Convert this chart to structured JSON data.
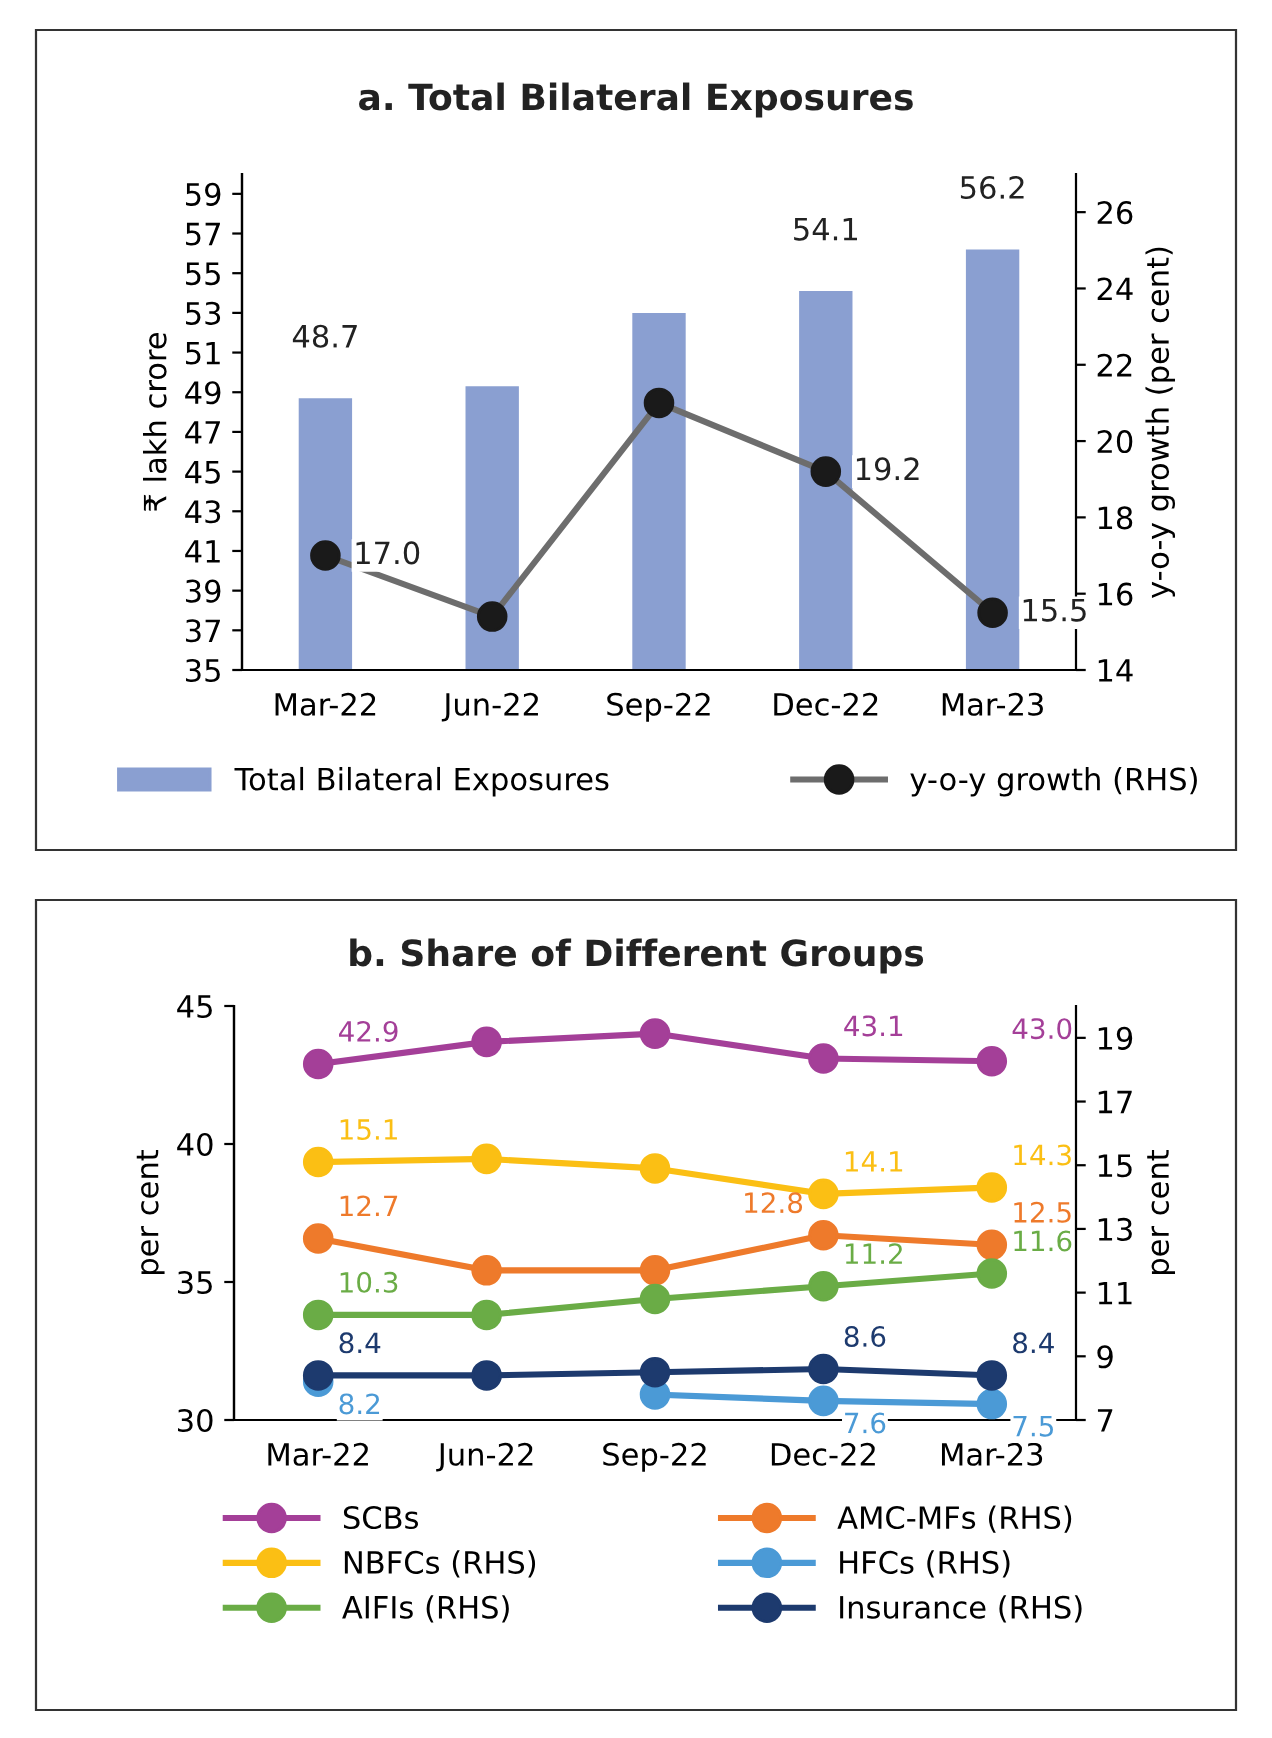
{
  "chart_data": [
    {
      "type": "bar",
      "title": "a. Total Bilateral Exposures",
      "ylabel": "₹ lakh crore",
      "y2label": "y-o-y growth (per cent)",
      "categories": [
        "Mar-22",
        "Jun-22",
        "Sep-22",
        "Dec-22",
        "Mar-23"
      ],
      "series": [
        {
          "name": "Total Bilateral Exposures",
          "type": "bar",
          "color": "#8a9fd1",
          "values": [
            48.7,
            49.3,
            53.0,
            54.1,
            56.2
          ],
          "value_labels": [
            "48.7",
            null,
            null,
            "54.1",
            "56.2"
          ]
        },
        {
          "name": "y-o-y growth (RHS)",
          "type": "line",
          "axis": "y2",
          "color": "#6d6d6d",
          "values": [
            17.0,
            15.4,
            21.0,
            19.2,
            15.5
          ],
          "value_labels": [
            "17.0",
            null,
            null,
            "19.2",
            "15.5"
          ]
        }
      ],
      "ylim": [
        35,
        60
      ],
      "yticks": [
        35,
        37,
        39,
        41,
        43,
        45,
        47,
        49,
        51,
        53,
        55,
        57,
        59
      ],
      "y2lim": [
        14,
        27
      ],
      "y2ticks": [
        14,
        16,
        18,
        20,
        22,
        24,
        26
      ],
      "marker": "circle",
      "line_style": "solid",
      "grid": false,
      "legend": "bottom"
    },
    {
      "type": "line",
      "title": "b. Share of Different Groups",
      "ylabel": "per cent",
      "y2label": "per cent",
      "categories": [
        "Mar-22",
        "Jun-22",
        "Sep-22",
        "Dec-22",
        "Mar-23"
      ],
      "series": [
        {
          "name": "SCBs",
          "color": "#a43f98",
          "values": [
            42.9,
            43.7,
            44.0,
            43.1,
            43.0
          ],
          "value_labels": [
            "42.9",
            null,
            null,
            "43.1",
            "43.0"
          ]
        },
        {
          "name": "AMC-MFs (RHS)",
          "axis": "y2",
          "color": "#ee7a2b",
          "values": [
            12.7,
            11.7,
            11.7,
            12.8,
            12.5
          ],
          "value_labels": [
            "12.7",
            null,
            null,
            "12.8",
            "12.5"
          ]
        },
        {
          "name": "NBFCs (RHS)",
          "axis": "y2",
          "color": "#fbbf14",
          "values": [
            15.1,
            15.2,
            14.9,
            14.1,
            14.3
          ],
          "value_labels": [
            "15.1",
            null,
            null,
            "14.1",
            "14.3"
          ]
        },
        {
          "name": "HFCs (RHS)",
          "axis": "y2",
          "color": "#4b9ad6",
          "values": [
            8.2,
            null,
            7.8,
            7.6,
            7.5
          ],
          "value_labels": [
            "8.2",
            null,
            null,
            "7.6",
            "7.5"
          ]
        },
        {
          "name": "AIFIs (RHS)",
          "axis": "y2",
          "color": "#6aac46",
          "values": [
            10.3,
            10.3,
            10.8,
            11.2,
            11.6
          ],
          "value_labels": [
            "10.3",
            null,
            null,
            "11.2",
            "11.6"
          ]
        },
        {
          "name": "Insurance (RHS)",
          "axis": "y2",
          "color": "#1d3a6e",
          "values": [
            8.4,
            8.4,
            8.5,
            8.6,
            8.4
          ],
          "value_labels": [
            "8.4",
            null,
            null,
            "8.6",
            "8.4"
          ]
        }
      ],
      "ylim": [
        30,
        45
      ],
      "yticks": [
        30,
        35,
        40,
        45
      ],
      "y2lim": [
        7,
        20
      ],
      "y2ticks": [
        7,
        9,
        11,
        13,
        15,
        17,
        19
      ],
      "marker": "circle",
      "line_style": "solid",
      "grid": false,
      "legend": "bottom"
    }
  ]
}
